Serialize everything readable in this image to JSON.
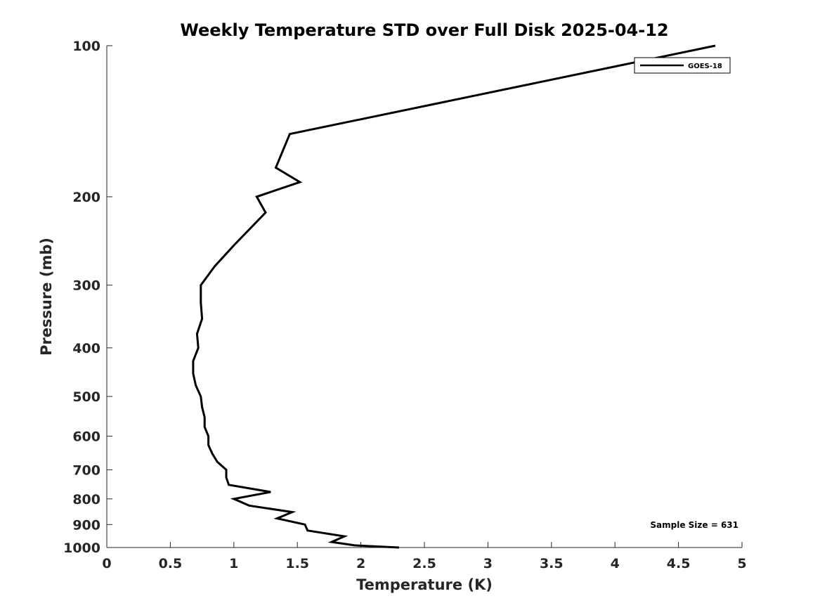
{
  "chart_data": {
    "type": "line",
    "title": "Weekly Temperature STD over Full Disk 2025-04-12",
    "xlabel": "Temperature (K)",
    "ylabel": "Pressure (mb)",
    "xlim": [
      0,
      5
    ],
    "ylim": [
      100,
      1000
    ],
    "yscale": "log",
    "y_reversed": true,
    "xticks": [
      0,
      0.5,
      1,
      1.5,
      2,
      2.5,
      3,
      3.5,
      4,
      4.5,
      5
    ],
    "xtick_labels": [
      "0",
      "0.5",
      "1",
      "1.5",
      "2",
      "2.5",
      "3",
      "3.5",
      "4",
      "4.5",
      "5"
    ],
    "yticks": [
      100,
      200,
      300,
      400,
      500,
      600,
      700,
      800,
      900,
      1000
    ],
    "ytick_labels": [
      "100",
      "200",
      "300",
      "400",
      "500",
      "600",
      "700",
      "800",
      "900",
      "1000"
    ],
    "grid": false,
    "legend": {
      "position": "top-right",
      "entries": [
        "GOES-18"
      ]
    },
    "annotation": "Sample Size = 631",
    "series": [
      {
        "name": "GOES-18",
        "color": "#000000",
        "points": [
          [
            4.79,
            100
          ],
          [
            1.44,
            150
          ],
          [
            1.33,
            175
          ],
          [
            1.52,
            187
          ],
          [
            1.18,
            200
          ],
          [
            1.25,
            215
          ],
          [
            1.0,
            250
          ],
          [
            0.85,
            275
          ],
          [
            0.74,
            300
          ],
          [
            0.74,
            325
          ],
          [
            0.75,
            350
          ],
          [
            0.71,
            375
          ],
          [
            0.72,
            400
          ],
          [
            0.68,
            425
          ],
          [
            0.68,
            450
          ],
          [
            0.7,
            475
          ],
          [
            0.74,
            500
          ],
          [
            0.75,
            525
          ],
          [
            0.77,
            550
          ],
          [
            0.77,
            575
          ],
          [
            0.8,
            600
          ],
          [
            0.8,
            625
          ],
          [
            0.83,
            650
          ],
          [
            0.87,
            675
          ],
          [
            0.94,
            700
          ],
          [
            0.94,
            725
          ],
          [
            0.96,
            750
          ],
          [
            1.29,
            775
          ],
          [
            1.0,
            800
          ],
          [
            1.12,
            825
          ],
          [
            1.46,
            850
          ],
          [
            1.34,
            875
          ],
          [
            1.56,
            900
          ],
          [
            1.58,
            925
          ],
          [
            1.87,
            950
          ],
          [
            1.77,
            975
          ],
          [
            1.95,
            990
          ],
          [
            2.3,
            1000
          ]
        ]
      }
    ]
  }
}
